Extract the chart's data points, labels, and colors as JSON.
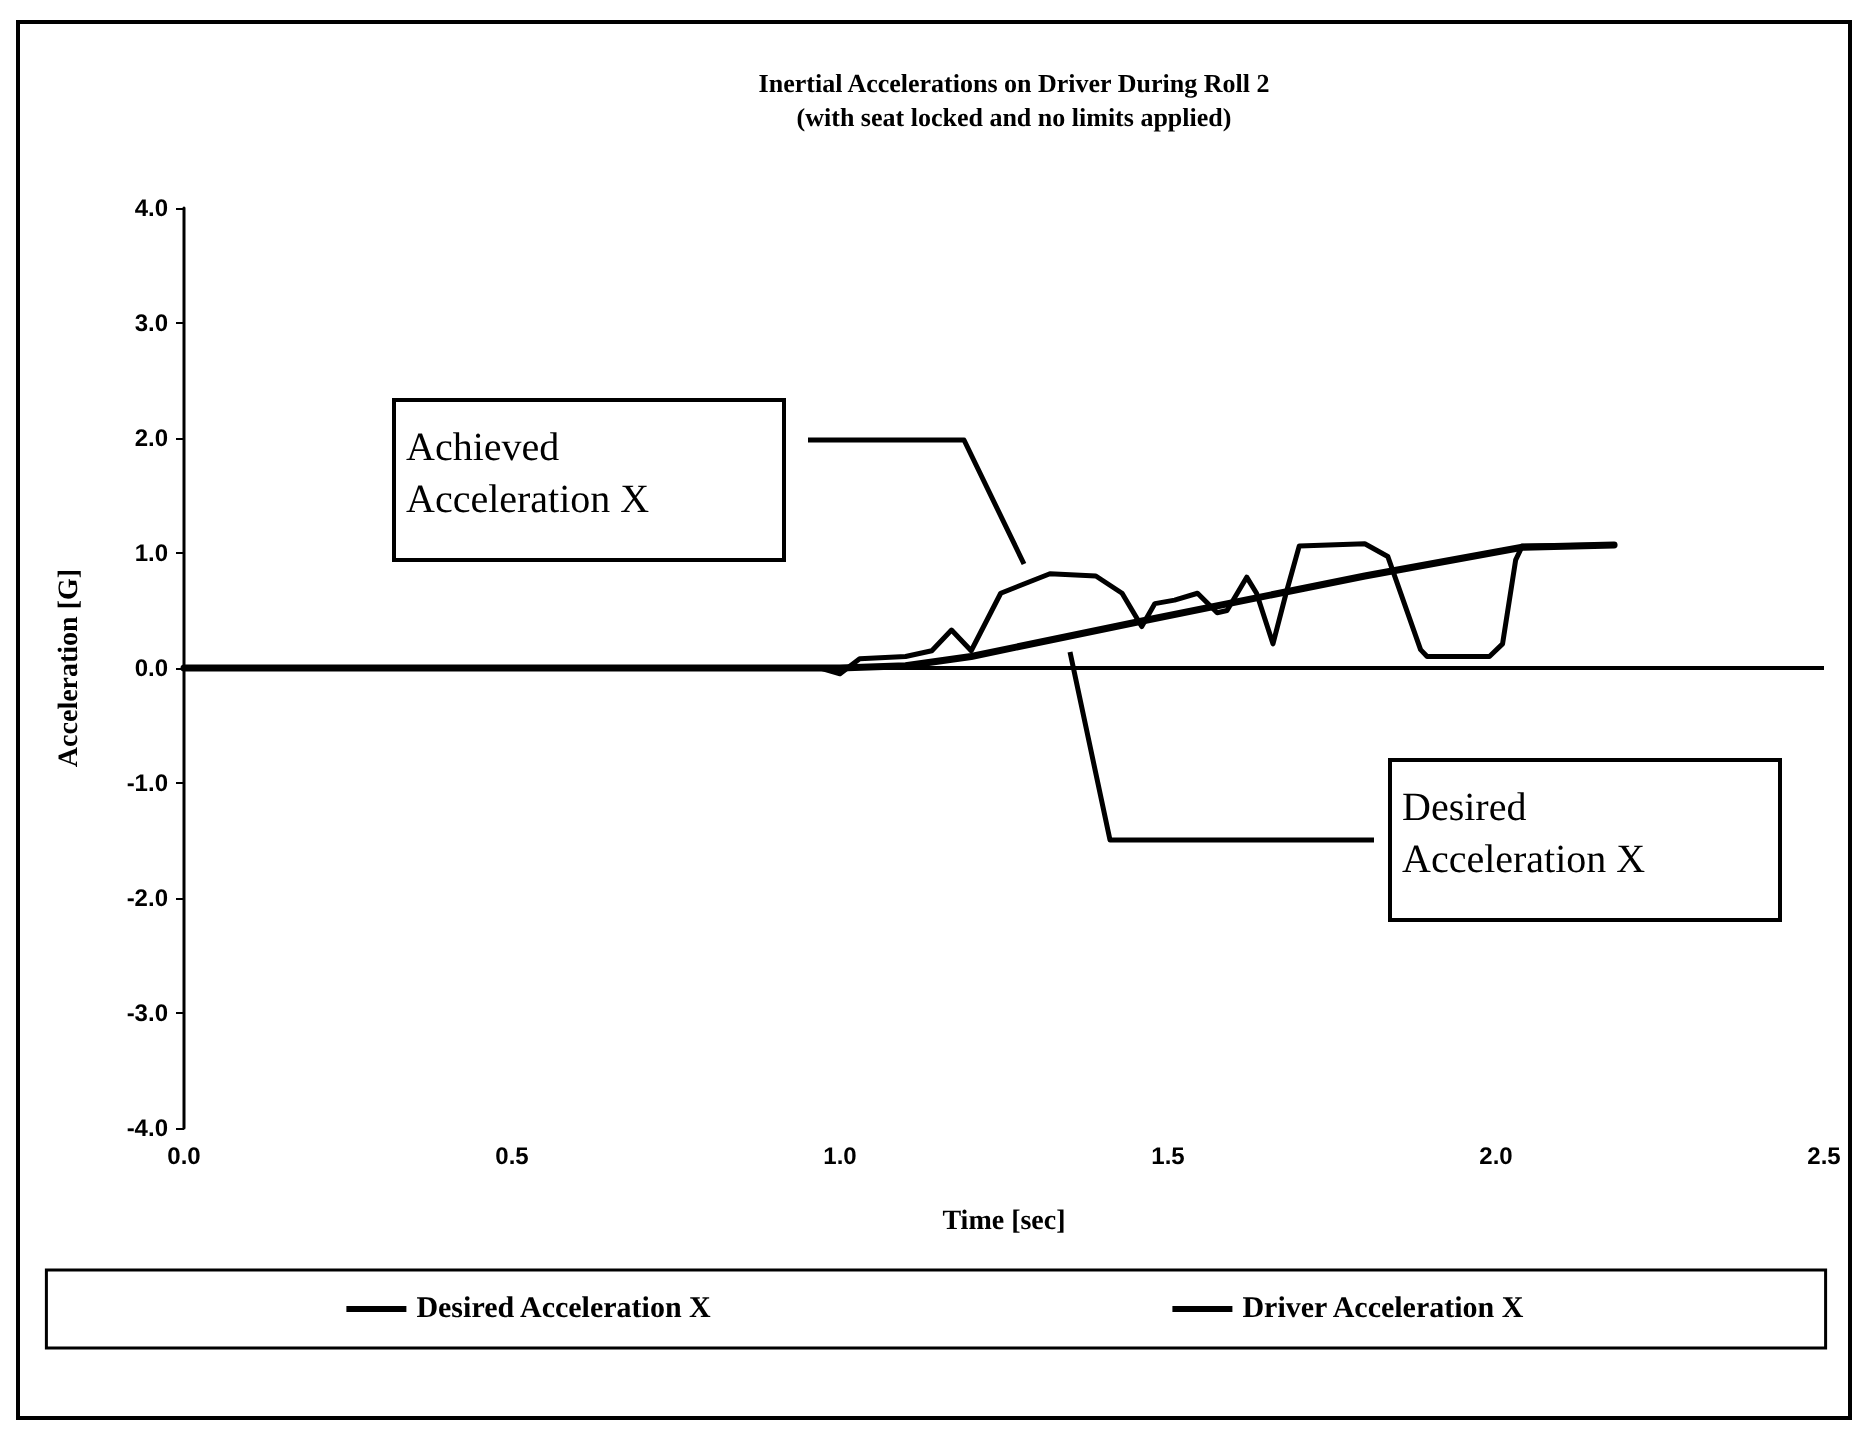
{
  "chart_data": {
    "type": "line",
    "title": "Inertial Accelerations on Driver During Roll 2",
    "subtitle": "(with seat locked and no limits applied)",
    "xlabel": "Time [sec]",
    "ylabel": "Acceleration [G]",
    "xlim": [
      0,
      2.5
    ],
    "xticks": [
      {
        "value": 0,
        "label": "0.0"
      },
      0.5,
      {
        "value": 1,
        "label": "1.0"
      },
      1.5,
      {
        "value": 2,
        "label": "2.0"
      },
      2.5
    ],
    "ylim": [
      -4,
      4
    ],
    "yticks": [
      {
        "value": -4,
        "label": "-4.0"
      },
      {
        "value": -3,
        "label": "-3.0"
      },
      {
        "value": -2,
        "label": "-2.0"
      },
      {
        "value": -1,
        "label": "-1.0"
      },
      {
        "value": 0,
        "label": "0.0"
      },
      {
        "value": 1,
        "label": "1.0"
      },
      {
        "value": 2,
        "label": "2.0"
      },
      {
        "value": 3,
        "label": "3.0"
      },
      {
        "value": 4,
        "label": "4.0"
      }
    ],
    "grid": false,
    "legend": "bottom",
    "ref_lines": [
      {
        "axis": "y",
        "value": 0
      }
    ],
    "annotations": [
      "Achieved Acceleration X",
      "Desired Acceleration X"
    ],
    "series": [
      {
        "name": "Desired Acceleration X",
        "color": "#000000",
        "x": [
          0,
          1.0,
          1.1,
          1.2,
          1.47,
          1.8,
          2.04,
          2.18
        ],
        "values": [
          0,
          0,
          0.02,
          0.1,
          0.42,
          0.8,
          1.05,
          1.07
        ]
      },
      {
        "name": "Driver Acceleration X",
        "color": "#000000",
        "x": [
          0,
          0.97,
          1.0,
          1.03,
          1.1,
          1.14,
          1.17,
          1.2,
          1.245,
          1.32,
          1.39,
          1.43,
          1.46,
          1.48,
          1.51,
          1.545,
          1.575,
          1.59,
          1.62,
          1.635,
          1.66,
          1.68,
          1.7,
          1.8,
          1.835,
          1.885,
          1.895,
          1.99,
          2.01,
          2.03,
          2.04,
          2.18
        ],
        "values": [
          0,
          0,
          -0.05,
          0.08,
          0.1,
          0.15,
          0.33,
          0.15,
          0.65,
          0.82,
          0.8,
          0.65,
          0.36,
          0.56,
          0.59,
          0.65,
          0.48,
          0.5,
          0.79,
          0.65,
          0.21,
          0.65,
          1.06,
          1.08,
          0.97,
          0.16,
          0.1,
          0.1,
          0.21,
          0.94,
          1.06,
          1.07
        ]
      }
    ]
  }
}
